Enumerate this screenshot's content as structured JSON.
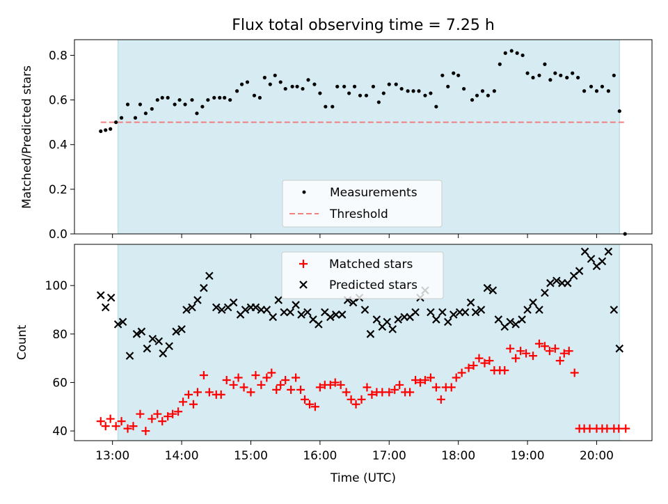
{
  "chart_data": [
    {
      "type": "scatter",
      "title": "Flux total observing time = 7.25 h",
      "ylabel": "Matched/Predicted stars",
      "xlim": [
        12.45,
        20.8
      ],
      "ylim": [
        0,
        0.87
      ],
      "yticks": [
        "0.0",
        "0.2",
        "0.4",
        "0.6",
        "0.8"
      ],
      "ytick_values": [
        0,
        0.2,
        0.4,
        0.6,
        0.8
      ],
      "xtick_values": [
        13,
        14,
        15,
        16,
        17,
        18,
        19,
        20
      ],
      "shaded_span": [
        13.08,
        20.33
      ],
      "shade_color": "#add8e6",
      "grid": false,
      "legend_position": "lower-center",
      "legend": [
        "Measurements",
        "Threshold"
      ],
      "threshold": {
        "name": "Threshold",
        "x": [
          12.83,
          20.41
        ],
        "y": 0.5,
        "color": "#f08080"
      },
      "series": [
        {
          "name": "Measurements",
          "color": "#000000",
          "x": [
            12.83,
            12.9,
            12.97,
            13.05,
            13.13,
            13.22,
            13.33,
            13.4,
            13.48,
            13.57,
            13.65,
            13.72,
            13.8,
            13.9,
            13.97,
            14.05,
            14.15,
            14.22,
            14.3,
            14.38,
            14.47,
            14.55,
            14.62,
            14.7,
            14.8,
            14.87,
            14.95,
            15.05,
            15.13,
            15.2,
            15.28,
            15.35,
            15.43,
            15.5,
            15.6,
            15.67,
            15.75,
            15.83,
            15.92,
            16.0,
            16.08,
            16.18,
            16.25,
            16.35,
            16.42,
            16.5,
            16.58,
            16.67,
            16.77,
            16.85,
            16.92,
            17.0,
            17.1,
            17.18,
            17.27,
            17.35,
            17.43,
            17.52,
            17.6,
            17.68,
            17.77,
            17.85,
            17.93,
            18.0,
            18.08,
            18.2,
            18.27,
            18.35,
            18.43,
            18.52,
            18.6,
            18.68,
            18.77,
            18.85,
            18.93,
            19.0,
            19.08,
            19.17,
            19.25,
            19.33,
            19.4,
            19.48,
            19.57,
            19.65,
            19.73,
            19.82,
            19.92,
            20.0,
            20.08,
            20.17,
            20.25,
            20.33,
            20.41
          ],
          "y": [
            0.46,
            0.465,
            0.47,
            0.5,
            0.52,
            0.58,
            0.52,
            0.58,
            0.54,
            0.56,
            0.6,
            0.61,
            0.61,
            0.58,
            0.6,
            0.58,
            0.6,
            0.54,
            0.57,
            0.6,
            0.61,
            0.61,
            0.61,
            0.6,
            0.64,
            0.67,
            0.68,
            0.62,
            0.61,
            0.7,
            0.67,
            0.71,
            0.68,
            0.65,
            0.66,
            0.66,
            0.65,
            0.69,
            0.67,
            0.63,
            0.57,
            0.57,
            0.66,
            0.66,
            0.63,
            0.66,
            0.62,
            0.62,
            0.66,
            0.59,
            0.63,
            0.67,
            0.67,
            0.65,
            0.64,
            0.64,
            0.64,
            0.62,
            0.63,
            0.57,
            0.71,
            0.66,
            0.72,
            0.71,
            0.65,
            0.6,
            0.62,
            0.64,
            0.62,
            0.64,
            0.76,
            0.81,
            0.82,
            0.81,
            0.8,
            0.72,
            0.7,
            0.71,
            0.76,
            0.69,
            0.72,
            0.71,
            0.7,
            0.72,
            0.7,
            0.64,
            0.66,
            0.64,
            0.66,
            0.64,
            0.71,
            0.55,
            0.0
          ]
        }
      ]
    },
    {
      "type": "scatter",
      "xlabel": "Time (UTC)",
      "ylabel": "Count",
      "xlim": [
        12.45,
        20.8
      ],
      "ylim": [
        36,
        117
      ],
      "yticks": [
        "40",
        "60",
        "80",
        "100"
      ],
      "ytick_values": [
        40,
        60,
        80,
        100
      ],
      "xticks": [
        "13:00",
        "14:00",
        "15:00",
        "16:00",
        "17:00",
        "18:00",
        "19:00",
        "20:00"
      ],
      "xtick_values": [
        13,
        14,
        15,
        16,
        17,
        18,
        19,
        20
      ],
      "shaded_span": [
        13.08,
        20.33
      ],
      "shade_color": "#add8e6",
      "grid": false,
      "legend_position": "upper-center",
      "legend": [
        "Matched stars",
        "Predicted stars"
      ],
      "series": [
        {
          "name": "Matched stars",
          "marker": "plus",
          "color": "#ff0000",
          "x": [
            12.83,
            12.9,
            12.97,
            13.05,
            13.13,
            13.22,
            13.3,
            13.4,
            13.48,
            13.57,
            13.65,
            13.72,
            13.8,
            13.87,
            13.95,
            14.02,
            14.1,
            14.17,
            14.23,
            14.32,
            14.4,
            14.5,
            14.57,
            14.65,
            14.75,
            14.82,
            14.9,
            15.0,
            15.07,
            15.15,
            15.23,
            15.3,
            15.37,
            15.43,
            15.5,
            15.58,
            15.65,
            15.72,
            15.78,
            15.85,
            15.93,
            16.0,
            16.07,
            16.15,
            16.22,
            16.3,
            16.38,
            16.45,
            16.52,
            16.6,
            16.68,
            16.75,
            16.82,
            16.9,
            17.0,
            17.08,
            17.15,
            17.23,
            17.3,
            17.38,
            17.45,
            17.52,
            17.6,
            17.68,
            17.75,
            17.82,
            17.9,
            17.97,
            18.05,
            18.15,
            18.22,
            18.3,
            18.38,
            18.45,
            18.52,
            18.6,
            18.67,
            18.75,
            18.83,
            18.9,
            18.98,
            19.08,
            19.17,
            19.25,
            19.32,
            19.4,
            19.47,
            19.53,
            19.6,
            19.68,
            19.75,
            19.82,
            19.9,
            20.0,
            20.08,
            20.15,
            20.25,
            20.32,
            20.42
          ],
          "y": [
            44,
            42,
            45,
            42,
            44,
            41,
            42,
            47,
            40,
            45,
            47,
            44,
            46,
            47,
            48,
            52,
            55,
            51,
            56,
            63,
            56,
            55,
            55,
            61,
            59,
            62,
            58,
            56,
            63,
            59,
            62,
            64,
            57,
            59,
            61,
            57,
            62,
            57,
            53,
            51,
            50,
            58,
            59,
            59,
            60,
            59,
            56,
            53,
            51,
            53,
            58,
            55,
            56,
            56,
            56,
            57,
            59,
            56,
            56,
            61,
            60,
            61,
            62,
            58,
            53,
            58,
            58,
            62,
            64,
            66,
            67,
            70,
            68,
            69,
            65,
            65,
            65,
            74,
            70,
            73,
            72,
            71,
            76,
            75,
            73,
            74,
            69,
            72,
            73,
            64,
            41,
            41,
            41,
            41,
            41,
            41,
            41,
            41,
            41
          ]
        },
        {
          "name": "Predicted stars",
          "marker": "x",
          "color": "#000000",
          "x": [
            12.83,
            12.9,
            12.98,
            13.08,
            13.15,
            13.25,
            13.35,
            13.42,
            13.5,
            13.58,
            13.67,
            13.73,
            13.82,
            13.92,
            14.0,
            14.07,
            14.15,
            14.23,
            14.32,
            14.4,
            14.5,
            14.58,
            14.67,
            14.75,
            14.85,
            14.92,
            15.0,
            15.07,
            15.15,
            15.23,
            15.32,
            15.4,
            15.48,
            15.57,
            15.65,
            15.73,
            15.82,
            15.9,
            15.98,
            16.07,
            16.15,
            16.23,
            16.32,
            16.4,
            16.48,
            16.57,
            16.65,
            16.73,
            16.82,
            16.9,
            16.97,
            17.05,
            17.13,
            17.22,
            17.3,
            17.38,
            17.45,
            17.52,
            17.6,
            17.68,
            17.77,
            17.85,
            17.93,
            18.02,
            18.1,
            18.18,
            18.25,
            18.33,
            18.42,
            18.5,
            18.58,
            18.67,
            18.75,
            18.83,
            18.92,
            19.0,
            19.08,
            19.17,
            19.25,
            19.33,
            19.42,
            19.5,
            19.58,
            19.67,
            19.75,
            19.83,
            19.92,
            20.0,
            20.08,
            20.17,
            20.25,
            20.33
          ],
          "y": [
            96,
            91,
            95,
            84,
            85,
            71,
            80,
            81,
            74,
            78,
            77,
            72,
            75,
            81,
            82,
            90,
            91,
            94,
            99,
            104,
            91,
            90,
            91,
            93,
            88,
            90,
            91,
            91,
            90,
            90,
            87,
            94,
            89,
            89,
            92,
            88,
            89,
            86,
            84,
            89,
            87,
            88,
            88,
            94,
            93,
            95,
            90,
            80,
            86,
            83,
            85,
            82,
            86,
            87,
            87,
            89,
            95,
            98,
            89,
            86,
            89,
            85,
            88,
            89,
            89,
            93,
            89,
            90,
            99,
            98,
            86,
            83,
            85,
            84,
            86,
            90,
            93,
            90,
            97,
            101,
            102,
            101,
            101,
            104,
            106,
            114,
            111,
            108,
            110,
            114,
            90,
            74
          ]
        }
      ]
    }
  ]
}
